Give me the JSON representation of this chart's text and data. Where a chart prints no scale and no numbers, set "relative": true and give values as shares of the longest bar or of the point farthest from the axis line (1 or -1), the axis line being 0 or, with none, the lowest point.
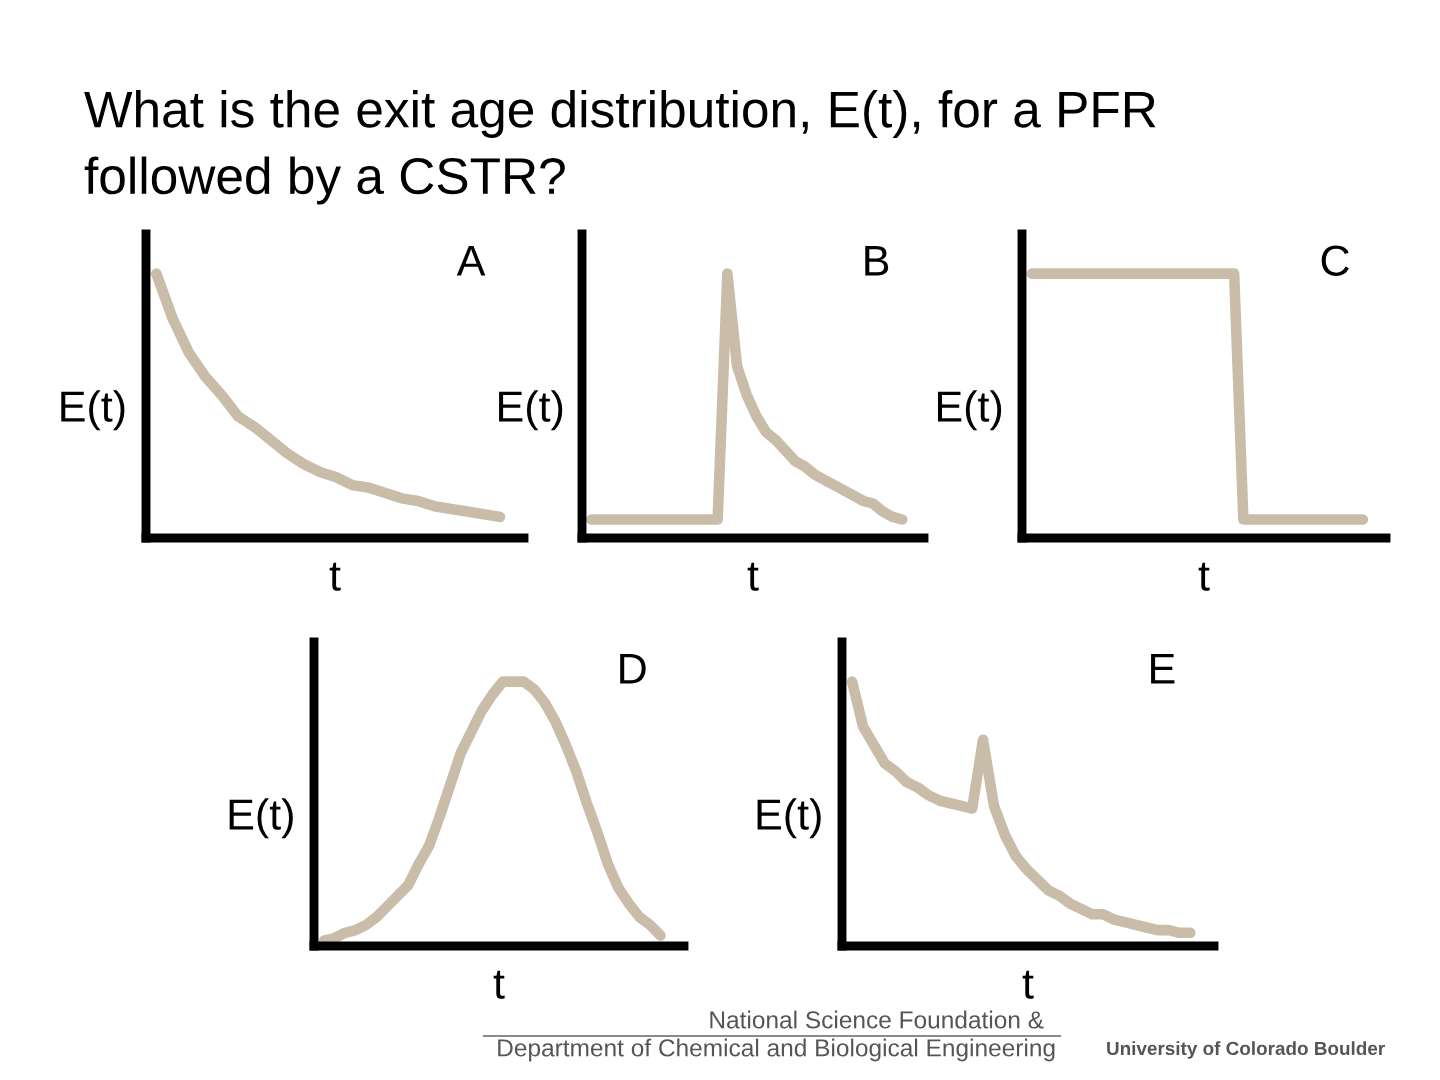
{
  "chart_data": [
    {
      "type": "line",
      "title": "A",
      "xlabel": "t",
      "ylabel": "E(t)",
      "relative": true,
      "annotations": [
        "What is the exit age distribution, E(t), for a PFR\nfollowed by a CSTR?"
      ],
      "categories": [
        null,
        null,
        null,
        null,
        null,
        null,
        null,
        null,
        null,
        null,
        null,
        null,
        null,
        null,
        null,
        null,
        null,
        null,
        null,
        null,
        null,
        null
      ],
      "series": [
        {
          "color": "#c9bca8",
          "values": [
            1.0,
            0.83,
            0.7,
            0.61,
            0.54,
            0.46,
            0.42,
            0.37,
            0.32,
            0.28,
            0.25,
            0.23,
            0.2,
            0.19,
            0.17,
            0.15,
            0.14,
            0.12,
            0.11,
            0.1,
            0.09,
            0.08
          ]
        }
      ]
    },
    {
      "type": "line",
      "title": "B",
      "xlabel": "t",
      "ylabel": "E(t)",
      "relative": true,
      "categories": [
        null,
        null,
        null,
        null,
        null,
        null,
        null,
        null,
        null,
        null,
        null,
        null,
        null,
        null,
        null,
        null,
        null,
        null,
        null,
        null,
        null,
        null,
        null,
        null,
        null,
        null,
        null,
        null,
        null,
        null,
        null,
        null,
        null
      ],
      "series": [
        {
          "color": "#c9bca8",
          "values": [
            0.07,
            0.07,
            0.07,
            0.07,
            0.07,
            0.07,
            0.07,
            0.07,
            0.07,
            0.07,
            0.07,
            0.07,
            0.07,
            0.07,
            1.0,
            0.65,
            0.54,
            0.46,
            0.4,
            0.37,
            0.33,
            0.29,
            0.27,
            0.24,
            0.22,
            0.2,
            0.18,
            0.16,
            0.14,
            0.13,
            0.1,
            0.08,
            0.07
          ]
        }
      ]
    },
    {
      "type": "line",
      "title": "C",
      "xlabel": "t",
      "ylabel": "E(t)",
      "relative": true,
      "categories": [
        null,
        null,
        null,
        null,
        null,
        null,
        null,
        null,
        null,
        null,
        null,
        null,
        null,
        null,
        null,
        null,
        null,
        null,
        null,
        null,
        null,
        null,
        null,
        null,
        null,
        null,
        null,
        null,
        null,
        null,
        null,
        null,
        null,
        null,
        null,
        null,
        null
      ],
      "series": [
        {
          "color": "#c9bca8",
          "values": [
            1.0,
            1.0,
            1.0,
            1.0,
            1.0,
            1.0,
            1.0,
            1.0,
            1.0,
            1.0,
            1.0,
            1.0,
            1.0,
            1.0,
            1.0,
            1.0,
            1.0,
            1.0,
            1.0,
            1.0,
            1.0,
            1.0,
            1.0,
            0.07,
            0.07,
            0.07,
            0.07,
            0.07,
            0.07,
            0.07,
            0.07,
            0.07,
            0.07,
            0.07,
            0.07,
            0.07,
            0.07
          ]
        }
      ]
    },
    {
      "type": "line",
      "title": "D",
      "xlabel": "t",
      "ylabel": "E(t)",
      "relative": true,
      "categories": [
        null,
        null,
        null,
        null,
        null,
        null,
        null,
        null,
        null,
        null,
        null,
        null,
        null,
        null,
        null,
        null,
        null,
        null,
        null,
        null,
        null,
        null,
        null,
        null,
        null,
        null,
        null,
        null,
        null,
        null,
        null,
        null,
        null
      ],
      "series": [
        {
          "color": "#c9bca8",
          "values": [
            0.02,
            0.03,
            0.05,
            0.06,
            0.08,
            0.11,
            0.15,
            0.19,
            0.23,
            0.31,
            0.38,
            0.49,
            0.61,
            0.73,
            0.81,
            0.89,
            0.95,
            1.0,
            1.0,
            1.0,
            0.97,
            0.92,
            0.85,
            0.76,
            0.66,
            0.54,
            0.43,
            0.31,
            0.22,
            0.16,
            0.11,
            0.08,
            0.04
          ]
        }
      ]
    },
    {
      "type": "line",
      "title": "E",
      "xlabel": "t",
      "ylabel": "E(t)",
      "relative": true,
      "annotations": [
        "National Science Foundation &",
        "Department of Chemical and Biological Engineering",
        "University of Colorado Boulder"
      ],
      "categories": [
        null,
        null,
        null,
        null,
        null,
        null,
        null,
        null,
        null,
        null,
        null,
        null,
        null,
        null,
        null,
        null,
        null,
        null,
        null,
        null,
        null,
        null,
        null,
        null,
        null,
        null,
        null,
        null,
        null,
        null,
        null,
        null
      ],
      "series": [
        {
          "color": "#c9bca8",
          "values": [
            1.0,
            0.83,
            0.76,
            0.69,
            0.66,
            0.62,
            0.6,
            0.57,
            0.55,
            0.54,
            0.53,
            0.52,
            0.78,
            0.53,
            0.42,
            0.34,
            0.29,
            0.25,
            0.21,
            0.19,
            0.16,
            0.14,
            0.12,
            0.12,
            0.1,
            0.09,
            0.08,
            0.07,
            0.06,
            0.06,
            0.05,
            0.05
          ]
        }
      ]
    }
  ]
}
